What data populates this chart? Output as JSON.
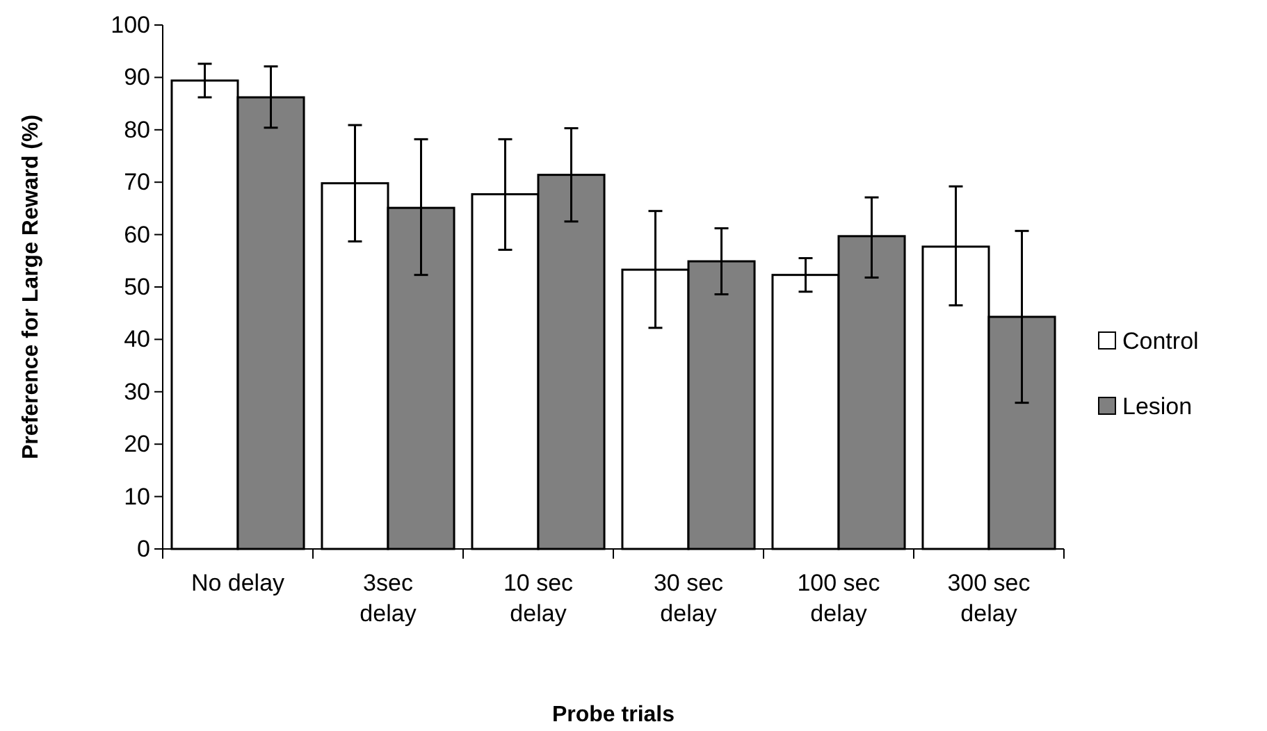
{
  "chart_data": {
    "type": "bar",
    "xlabel": "Probe trials",
    "ylabel": "Preference for Large Reward (%)",
    "categories": [
      "No delay",
      "3sec\ndelay",
      "10 sec\ndelay",
      "30 sec\ndelay",
      "100 sec\ndelay",
      "300 sec\ndelay"
    ],
    "series": [
      {
        "name": "Control",
        "color": "#ffffff",
        "values": [
          89.4,
          69.8,
          67.7,
          53.3,
          52.3,
          57.7
        ],
        "errors": [
          [
            86.2,
            92.6
          ],
          [
            58.7,
            80.9
          ],
          [
            57.1,
            78.2
          ],
          [
            42.2,
            64.5
          ],
          [
            49.1,
            55.5
          ],
          [
            46.5,
            69.2
          ]
        ]
      },
      {
        "name": "Lesion",
        "color": "#808080",
        "values": [
          86.2,
          65.1,
          71.4,
          54.9,
          59.7,
          44.3
        ],
        "errors": [
          [
            80.4,
            92.1
          ],
          [
            52.3,
            78.2
          ],
          [
            62.5,
            80.3
          ],
          [
            48.6,
            61.2
          ],
          [
            51.8,
            67.1
          ],
          [
            27.9,
            60.7
          ]
        ]
      }
    ],
    "ylim": [
      0,
      100
    ],
    "yticks": [
      0,
      10,
      20,
      30,
      40,
      50,
      60,
      70,
      80,
      90,
      100
    ],
    "grid": false,
    "legend": "right"
  }
}
